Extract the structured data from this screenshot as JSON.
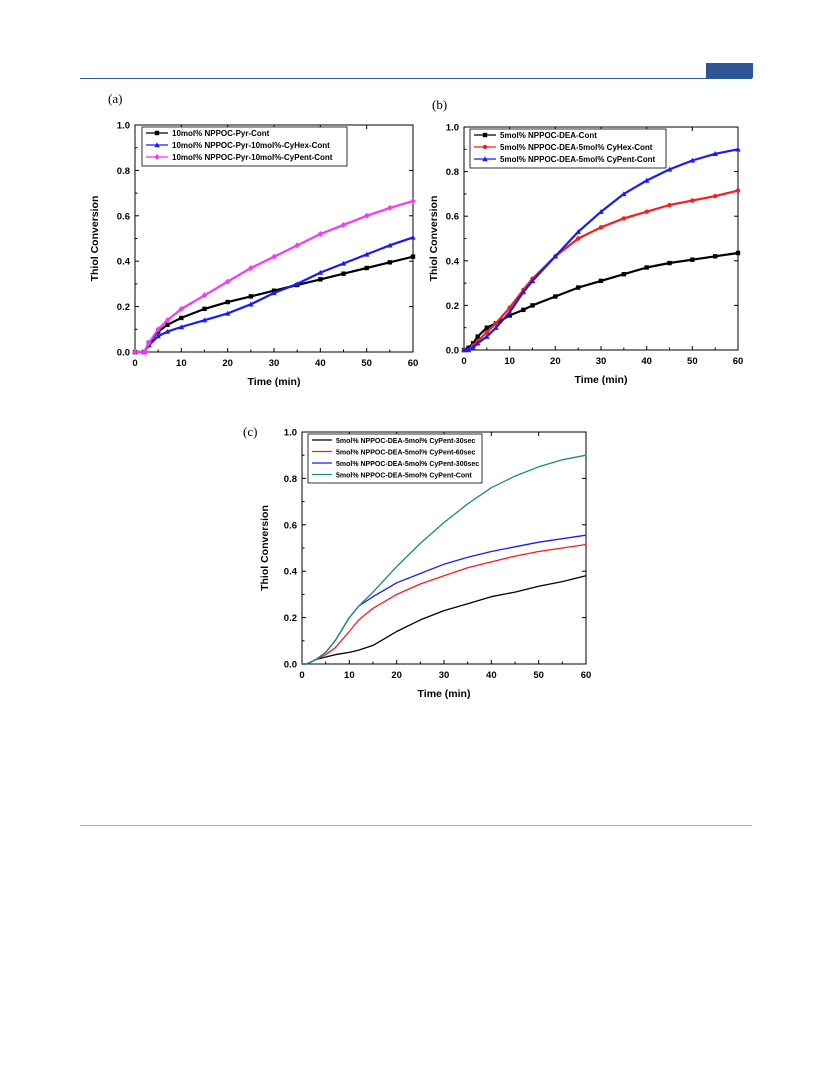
{
  "colors": {
    "header_blue": "#2f5597",
    "black": "#000000",
    "blue": "#1a1aff",
    "magenta": "#ff33ff",
    "red": "#ff1a1a",
    "teal": "#1a8a80"
  },
  "panels": {
    "a": {
      "label": "(a)"
    },
    "b": {
      "label": "(b)"
    },
    "c": {
      "label": "(c)"
    }
  },
  "chart_data": [
    {
      "id": "a",
      "type": "line",
      "xlabel": "Time (min)",
      "ylabel": "Thiol Conversion",
      "xlim": [
        0,
        60
      ],
      "ylim": [
        0,
        1.0
      ],
      "xticks": [
        "0",
        "10",
        "20",
        "30",
        "40",
        "50",
        "60"
      ],
      "yticks": [
        "0.0",
        "0.2",
        "0.4",
        "0.6",
        "0.8",
        "1.0"
      ],
      "legend_position": "top-left",
      "x": [
        0,
        2,
        3,
        5,
        7,
        10,
        15,
        20,
        25,
        30,
        35,
        40,
        45,
        50,
        55,
        60
      ],
      "series": [
        {
          "name": "10mol% NPPOC-Pyr-Cont",
          "color": "#000000",
          "marker": "square",
          "values": [
            0,
            0,
            0.04,
            0.09,
            0.12,
            0.15,
            0.19,
            0.22,
            0.245,
            0.27,
            0.295,
            0.32,
            0.345,
            0.37,
            0.395,
            0.42
          ]
        },
        {
          "name": "10mol% NPPOC-Pyr-10mol%-CyHex-Cont",
          "color": "#1a1aff",
          "marker": "triangle",
          "values": [
            0,
            0,
            0.03,
            0.07,
            0.09,
            0.11,
            0.14,
            0.17,
            0.21,
            0.26,
            0.3,
            0.35,
            0.39,
            0.43,
            0.47,
            0.505
          ]
        },
        {
          "name": "10mol% NPPOC-Pyr-10mol%-CyPent-Cont",
          "color": "#ff33ff",
          "marker": "diamond",
          "values": [
            0,
            0,
            0.04,
            0.1,
            0.14,
            0.19,
            0.25,
            0.31,
            0.37,
            0.42,
            0.47,
            0.52,
            0.56,
            0.6,
            0.635,
            0.665
          ]
        }
      ]
    },
    {
      "id": "b",
      "type": "line",
      "xlabel": "Time (min)",
      "ylabel": "Thiol Conversion",
      "xlim": [
        0,
        60
      ],
      "ylim": [
        0,
        1.0
      ],
      "xticks": [
        "0",
        "10",
        "20",
        "30",
        "40",
        "50",
        "60"
      ],
      "yticks": [
        "0.0",
        "0.2",
        "0.4",
        "0.6",
        "0.8",
        "1.0"
      ],
      "legend_position": "top-left",
      "x": [
        0,
        1,
        2,
        3,
        5,
        7,
        10,
        13,
        15,
        20,
        25,
        30,
        35,
        40,
        45,
        50,
        55,
        60
      ],
      "series": [
        {
          "name": "5mol% NPPOC-DEA-Cont",
          "color": "#000000",
          "marker": "square",
          "values": [
            0,
            0.01,
            0.03,
            0.06,
            0.1,
            0.12,
            0.155,
            0.18,
            0.2,
            0.24,
            0.28,
            0.31,
            0.34,
            0.37,
            0.39,
            0.405,
            0.42,
            0.435
          ]
        },
        {
          "name": "5mol% NPPOC-DEA-5mol% CyHex-Cont",
          "color": "#ff1a1a",
          "marker": "circle",
          "values": [
            0,
            0,
            0.02,
            0.04,
            0.08,
            0.12,
            0.19,
            0.27,
            0.32,
            0.42,
            0.5,
            0.55,
            0.59,
            0.62,
            0.65,
            0.67,
            0.69,
            0.715
          ]
        },
        {
          "name": "5mol% NPPOC-DEA-5mol% CyPent-Cont",
          "color": "#1a1aff",
          "marker": "triangle",
          "values": [
            0,
            0,
            0.01,
            0.03,
            0.06,
            0.1,
            0.17,
            0.26,
            0.31,
            0.42,
            0.53,
            0.62,
            0.7,
            0.76,
            0.81,
            0.85,
            0.88,
            0.9
          ]
        }
      ]
    },
    {
      "id": "c",
      "type": "line",
      "xlabel": "Time (min)",
      "ylabel": "Thiol Conversion",
      "xlim": [
        0,
        60
      ],
      "ylim": [
        0,
        1.0
      ],
      "xticks": [
        "0",
        "10",
        "20",
        "30",
        "40",
        "50",
        "60"
      ],
      "yticks": [
        "0.0",
        "0.2",
        "0.4",
        "0.6",
        "0.8",
        "1.0"
      ],
      "legend_position": "top-left",
      "x": [
        0,
        1,
        2,
        3,
        5,
        7,
        10,
        12,
        15,
        20,
        25,
        30,
        35,
        40,
        45,
        50,
        55,
        60
      ],
      "series": [
        {
          "name": "5mol% NPPOC-DEA-5mol% CyPent-30sec",
          "color": "#000000",
          "values": [
            0,
            0,
            0.01,
            0.02,
            0.03,
            0.04,
            0.05,
            0.06,
            0.08,
            0.14,
            0.19,
            0.23,
            0.26,
            0.29,
            0.31,
            0.335,
            0.355,
            0.38
          ]
        },
        {
          "name": "5mol% NPPOC-DEA-5mol% CyPent-60sec",
          "color": "#ff1a1a",
          "values": [
            0,
            0,
            0.01,
            0.02,
            0.04,
            0.07,
            0.14,
            0.19,
            0.24,
            0.3,
            0.345,
            0.38,
            0.415,
            0.44,
            0.465,
            0.485,
            0.5,
            0.515
          ]
        },
        {
          "name": "5mol% NPPOC-DEA-5mol% CyPent-300sec",
          "color": "#1a1aff",
          "values": [
            0,
            0,
            0.01,
            0.02,
            0.05,
            0.1,
            0.2,
            0.25,
            0.29,
            0.35,
            0.39,
            0.43,
            0.46,
            0.485,
            0.505,
            0.525,
            0.54,
            0.555
          ]
        },
        {
          "name": "5mol% NPPOC-DEA-5mol% CyPent-Cont",
          "color": "#1a8a80",
          "values": [
            0,
            0,
            0.01,
            0.02,
            0.05,
            0.1,
            0.2,
            0.25,
            0.31,
            0.42,
            0.52,
            0.61,
            0.69,
            0.76,
            0.81,
            0.85,
            0.88,
            0.9
          ]
        }
      ]
    }
  ]
}
